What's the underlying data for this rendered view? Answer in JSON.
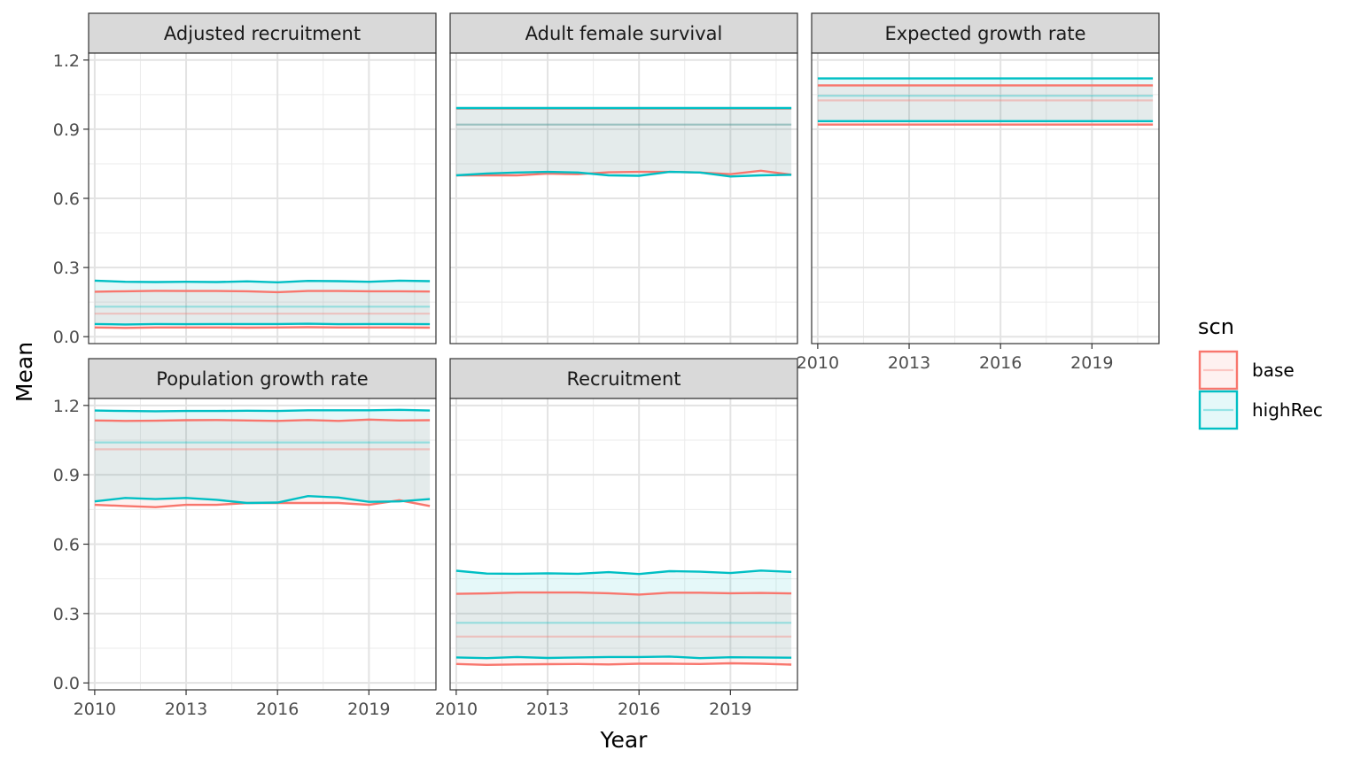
{
  "chart_data": {
    "type": "line",
    "xlabel": "Year",
    "ylabel": "Mean",
    "xlim": [
      2009.8,
      2021.2
    ],
    "ylim": [
      -0.03,
      1.23
    ],
    "x_ticks": [
      2010,
      2013,
      2016,
      2019
    ],
    "y_ticks": [
      "0.0",
      "0.3",
      "0.6",
      "0.9",
      "1.2"
    ],
    "grid": true,
    "legend": {
      "title": "scn",
      "position": "right",
      "entries": [
        {
          "name": "base",
          "color": "#F8766D"
        },
        {
          "name": "highRec",
          "color": "#00BFC4"
        }
      ]
    },
    "x": [
      2010,
      2011,
      2012,
      2013,
      2014,
      2015,
      2016,
      2017,
      2018,
      2019,
      2020,
      2021
    ],
    "panels": [
      {
        "title": "Adjusted recruitment",
        "series": [
          {
            "name": "base",
            "mean": [
              0.1,
              0.1,
              0.1,
              0.1,
              0.1,
              0.1,
              0.1,
              0.1,
              0.1,
              0.1,
              0.1,
              0.1
            ],
            "upper": [
              0.195,
              0.197,
              0.199,
              0.198,
              0.198,
              0.197,
              0.193,
              0.198,
              0.198,
              0.197,
              0.197,
              0.196
            ],
            "lower": [
              0.04,
              0.038,
              0.04,
              0.04,
              0.04,
              0.039,
              0.04,
              0.041,
              0.04,
              0.04,
              0.04,
              0.039
            ]
          },
          {
            "name": "highRec",
            "mean": [
              0.13,
              0.13,
              0.13,
              0.13,
              0.13,
              0.13,
              0.13,
              0.13,
              0.13,
              0.13,
              0.13,
              0.13
            ],
            "upper": [
              0.243,
              0.238,
              0.237,
              0.238,
              0.237,
              0.24,
              0.236,
              0.242,
              0.241,
              0.238,
              0.243,
              0.241
            ],
            "lower": [
              0.055,
              0.053,
              0.055,
              0.054,
              0.055,
              0.055,
              0.055,
              0.056,
              0.054,
              0.055,
              0.055,
              0.054
            ]
          }
        ]
      },
      {
        "title": "Adult female survival",
        "series": [
          {
            "name": "base",
            "mean": [
              0.92,
              0.92,
              0.92,
              0.92,
              0.92,
              0.92,
              0.92,
              0.92,
              0.92,
              0.92,
              0.92,
              0.92
            ],
            "upper": [
              0.99,
              0.99,
              0.99,
              0.99,
              0.99,
              0.99,
              0.99,
              0.99,
              0.99,
              0.99,
              0.99,
              0.99
            ],
            "lower": [
              0.7,
              0.7,
              0.7,
              0.707,
              0.705,
              0.713,
              0.715,
              0.715,
              0.712,
              0.705,
              0.72,
              0.703
            ]
          },
          {
            "name": "highRec",
            "mean": [
              0.92,
              0.92,
              0.92,
              0.92,
              0.92,
              0.92,
              0.92,
              0.92,
              0.92,
              0.92,
              0.92,
              0.92
            ],
            "upper": [
              0.992,
              0.992,
              0.992,
              0.992,
              0.992,
              0.992,
              0.992,
              0.992,
              0.992,
              0.992,
              0.992,
              0.992
            ],
            "lower": [
              0.7,
              0.708,
              0.712,
              0.715,
              0.712,
              0.7,
              0.698,
              0.715,
              0.712,
              0.695,
              0.7,
              0.702
            ]
          }
        ]
      },
      {
        "title": "Expected growth rate",
        "series": [
          {
            "name": "base",
            "mean": [
              1.025,
              1.025,
              1.025,
              1.025,
              1.025,
              1.025,
              1.025,
              1.025,
              1.025,
              1.025,
              1.025,
              1.025
            ],
            "upper": [
              1.09,
              1.09,
              1.09,
              1.09,
              1.09,
              1.09,
              1.09,
              1.09,
              1.09,
              1.09,
              1.09,
              1.09
            ],
            "lower": [
              0.92,
              0.92,
              0.92,
              0.92,
              0.92,
              0.92,
              0.92,
              0.92,
              0.92,
              0.92,
              0.92,
              0.92
            ]
          },
          {
            "name": "highRec",
            "mean": [
              1.045,
              1.045,
              1.045,
              1.045,
              1.045,
              1.045,
              1.045,
              1.045,
              1.045,
              1.045,
              1.045,
              1.045
            ],
            "upper": [
              1.12,
              1.12,
              1.12,
              1.12,
              1.12,
              1.12,
              1.12,
              1.12,
              1.12,
              1.12,
              1.12,
              1.12
            ],
            "lower": [
              0.935,
              0.935,
              0.935,
              0.935,
              0.935,
              0.935,
              0.935,
              0.935,
              0.935,
              0.935,
              0.935,
              0.935
            ]
          }
        ]
      },
      {
        "title": "Population growth rate",
        "series": [
          {
            "name": "base",
            "mean": [
              1.01,
              1.01,
              1.01,
              1.01,
              1.01,
              1.01,
              1.01,
              1.01,
              1.01,
              1.01,
              1.01,
              1.01
            ],
            "upper": [
              1.135,
              1.133,
              1.134,
              1.136,
              1.137,
              1.135,
              1.133,
              1.137,
              1.133,
              1.139,
              1.135,
              1.136
            ],
            "lower": [
              0.77,
              0.765,
              0.76,
              0.77,
              0.77,
              0.778,
              0.778,
              0.778,
              0.778,
              0.77,
              0.79,
              0.765
            ]
          },
          {
            "name": "highRec",
            "mean": [
              1.04,
              1.04,
              1.04,
              1.04,
              1.04,
              1.04,
              1.04,
              1.04,
              1.04,
              1.04,
              1.04,
              1.04
            ],
            "upper": [
              1.178,
              1.176,
              1.175,
              1.176,
              1.176,
              1.177,
              1.176,
              1.179,
              1.179,
              1.179,
              1.181,
              1.178
            ],
            "lower": [
              0.785,
              0.8,
              0.795,
              0.8,
              0.792,
              0.778,
              0.78,
              0.808,
              0.802,
              0.783,
              0.785,
              0.795
            ]
          }
        ]
      },
      {
        "title": "Recruitment",
        "series": [
          {
            "name": "base",
            "mean": [
              0.2,
              0.2,
              0.2,
              0.2,
              0.2,
              0.2,
              0.2,
              0.2,
              0.2,
              0.2,
              0.2,
              0.2
            ],
            "upper": [
              0.385,
              0.387,
              0.391,
              0.391,
              0.391,
              0.388,
              0.382,
              0.39,
              0.39,
              0.388,
              0.389,
              0.387
            ],
            "lower": [
              0.082,
              0.078,
              0.08,
              0.081,
              0.082,
              0.08,
              0.083,
              0.083,
              0.082,
              0.085,
              0.083,
              0.079
            ]
          },
          {
            "name": "highRec",
            "mean": [
              0.26,
              0.26,
              0.26,
              0.26,
              0.26,
              0.26,
              0.26,
              0.26,
              0.26,
              0.26,
              0.26,
              0.26
            ],
            "upper": [
              0.485,
              0.473,
              0.472,
              0.474,
              0.472,
              0.479,
              0.471,
              0.483,
              0.481,
              0.475,
              0.486,
              0.48
            ],
            "lower": [
              0.11,
              0.107,
              0.112,
              0.108,
              0.11,
              0.112,
              0.112,
              0.114,
              0.107,
              0.111,
              0.11,
              0.109
            ]
          }
        ]
      }
    ]
  }
}
